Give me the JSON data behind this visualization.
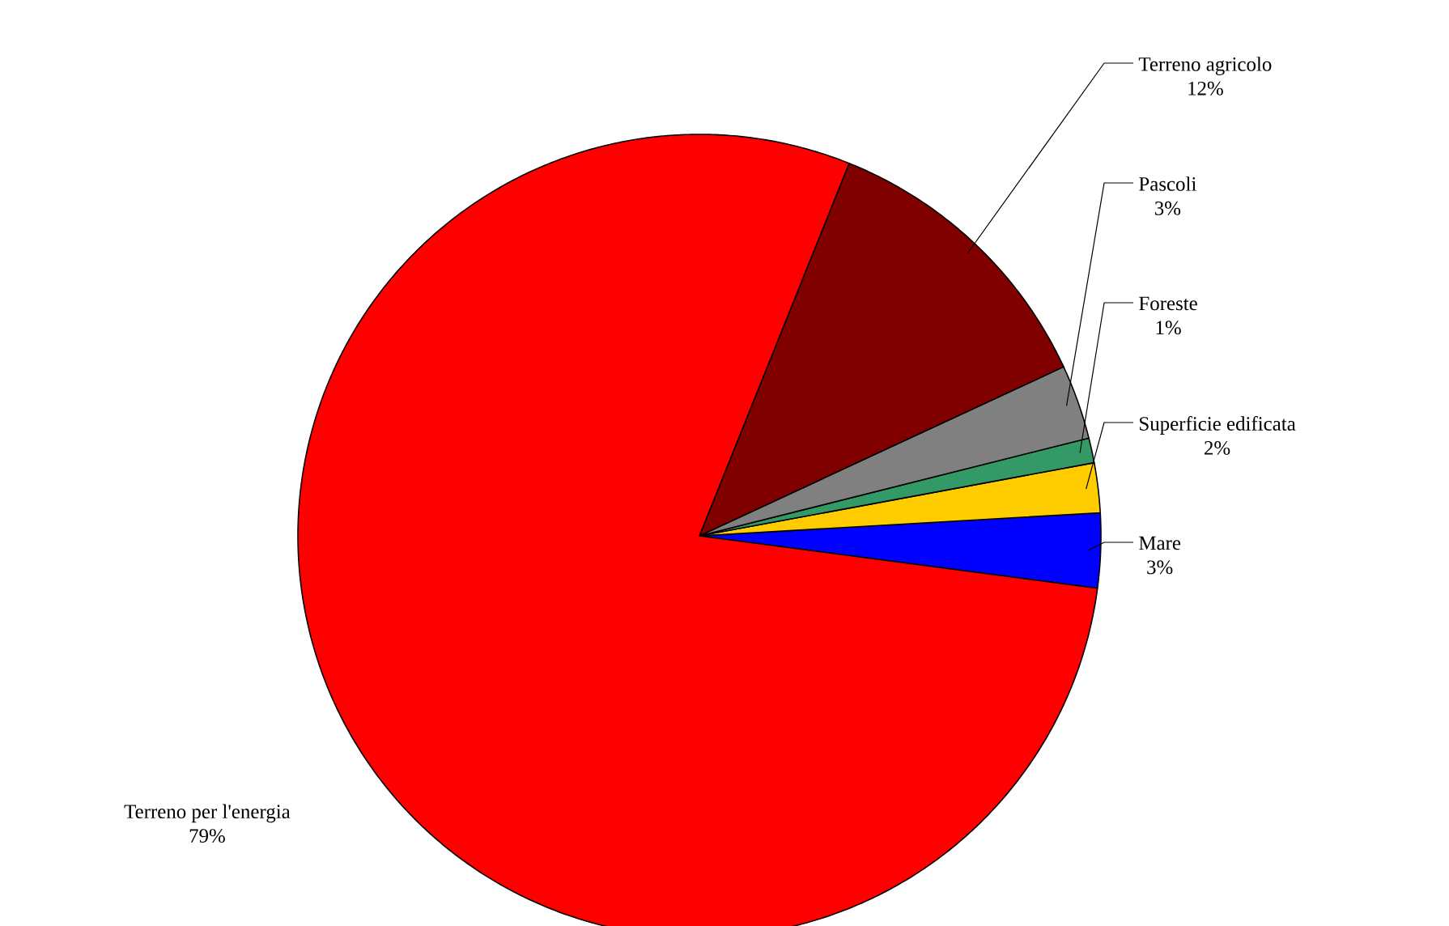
{
  "chart_data": {
    "type": "pie",
    "categories": [
      "Mare",
      "Superficie edificata",
      "Foreste",
      "Pascoli",
      "Terreno agricolo",
      "Terreno per l'energia"
    ],
    "values": [
      3,
      2,
      1,
      3,
      12,
      79
    ],
    "value_labels": [
      "3%",
      "2%",
      "1%",
      "3%",
      "12%",
      "79%"
    ],
    "colors": [
      "#0000ff",
      "#ffcc00",
      "#339966",
      "#808080",
      "#800000",
      "#ff0000"
    ]
  }
}
